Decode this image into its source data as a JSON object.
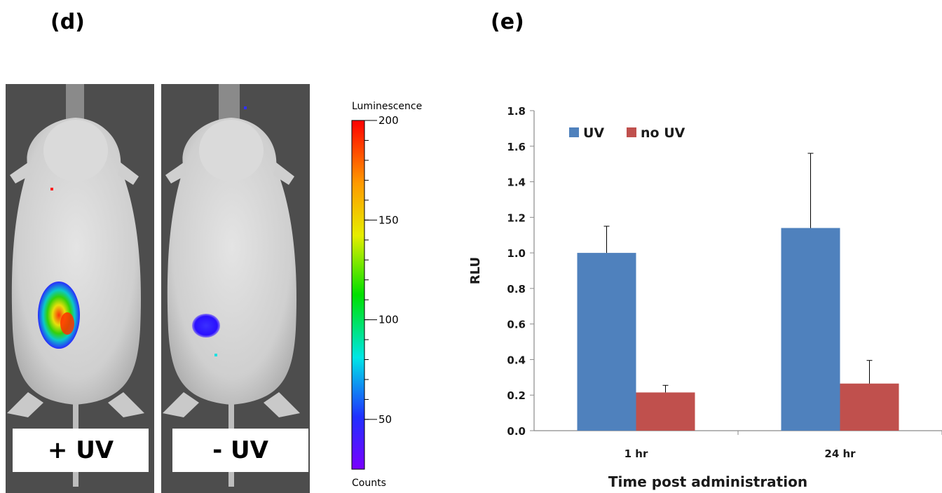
{
  "panels": {
    "left_label": "(d)",
    "right_label": "(e)"
  },
  "mice": {
    "treated_label": "+ UV",
    "control_label": "- UV"
  },
  "colorbar": {
    "title": "Luminescence",
    "bottom_label": "Counts",
    "ticks": [
      "200",
      "150",
      "100",
      "50"
    ],
    "tick_values": [
      200,
      150,
      100,
      50
    ],
    "range": [
      25,
      200
    ]
  },
  "chart_data": {
    "type": "bar",
    "categories": [
      "1 hr",
      "24 hr"
    ],
    "series": [
      {
        "name": "UV",
        "values": [
          1.0,
          1.14
        ],
        "errors": [
          0.15,
          0.42
        ],
        "color": "#4f81bd"
      },
      {
        "name": "no UV",
        "values": [
          0.215,
          0.265
        ],
        "errors": [
          0.04,
          0.13
        ],
        "color": "#c0504d"
      }
    ],
    "ylabel": "RLU",
    "xlabel": "Time post administration",
    "ylim": [
      0,
      1.8
    ],
    "yticks": [
      "0.0",
      "0.2",
      "0.4",
      "0.6",
      "0.8",
      "1.0",
      "1.2",
      "1.4",
      "1.6",
      "1.8"
    ],
    "grid": false,
    "legend_position": "top-left"
  }
}
